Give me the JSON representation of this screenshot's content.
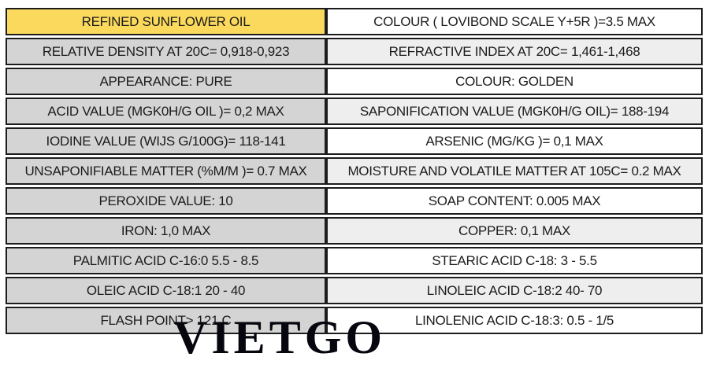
{
  "colors": {
    "header_yellow": "#FBD95C",
    "left_gray": "#D4D4D4",
    "right_light_gray": "#EEEEEE",
    "right_white": "#FFFFFF",
    "border_dark": "#1C1C1C",
    "text": "#1C1C1C",
    "watermark_black": "#06060E"
  },
  "spec_table": {
    "rows": [
      {
        "left": "REFINED SUNFLOWER OIL",
        "right": "COLOUR ( LOVIBOND SCALE Y+5R )=3.5 MAX"
      },
      {
        "left": "RELATIVE DENSITY AT 20C= 0,918-0,923",
        "right": "REFRACTIVE INDEX AT 20C= 1,461-1,468"
      },
      {
        "left": "APPEARANCE: PURE",
        "right": "COLOUR: GOLDEN"
      },
      {
        "left": "ACID VALUE (MGK0H/G OIL )= 0,2 MAX",
        "right": "SAPONIFICATION VALUE (MGK0H/G OIL)= 188-194"
      },
      {
        "left": "IODINE VALUE (WIJS G/100G)= 118-141",
        "right": "ARSENIC (MG/KG )= 0,1 MAX"
      },
      {
        "left": "UNSAPONIFIABLE MATTER (%M/M )= 0.7 MAX",
        "right": "MOISTURE AND VOLATILE MATTER AT 105C= 0.2 MAX"
      },
      {
        "left": "PEROXIDE VALUE: 10",
        "right": "SOAP CONTENT: 0.005 MAX"
      },
      {
        "left": "IRON: 1,0 MAX",
        "right": "COPPER: 0,1 MAX"
      },
      {
        "left": "PALMITIC ACID C-16:0 5.5 - 8.5",
        "right": "STEARIC ACID C-18: 3 - 5.5"
      },
      {
        "left": "OLEIC ACID C-18:1 20 - 40",
        "right": "LINOLEIC ACID C-18:2 40- 70"
      },
      {
        "left": "FLASH POINT> 121 C",
        "right": "LINOLENIC ACID C-18:3: 0.5 - 1/5"
      }
    ]
  },
  "watermark": {
    "text": "VIETGO"
  }
}
